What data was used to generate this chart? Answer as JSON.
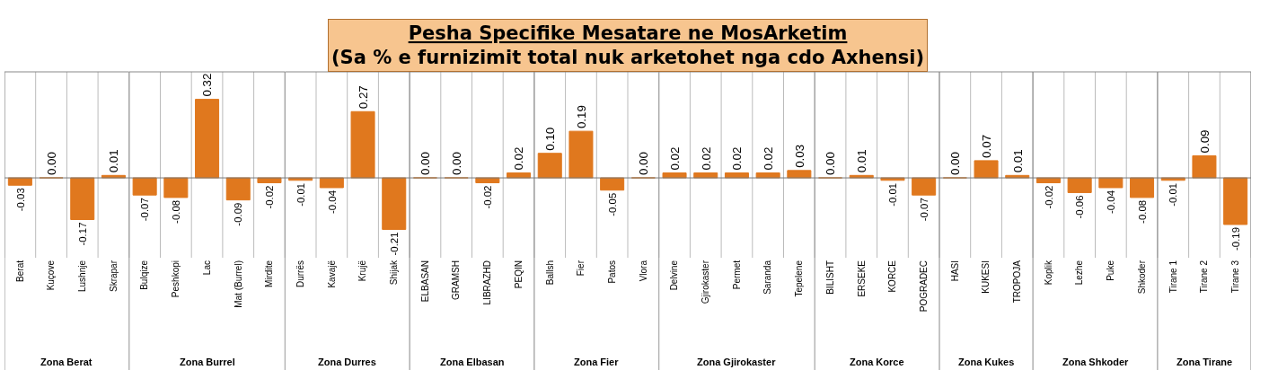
{
  "chart_data": [
    {
      "type": "bar",
      "xlabel": "Zona Berat",
      "categories": [
        "Berat",
        "Kuçove",
        "Lushnje",
        "Skrapar"
      ],
      "values": [
        -0.03,
        0.0,
        -0.17,
        0.01
      ],
      "value_labels": [
        "-0.03",
        "0.00",
        "-0.17",
        "0.01"
      ],
      "color": "#e0781e"
    },
    {
      "type": "bar",
      "xlabel": "Zona Burrel",
      "categories": [
        "Bulqize",
        "Peshkopi",
        "Lac",
        "Mat (Burrel)",
        "Mirdite"
      ],
      "values": [
        -0.07,
        -0.08,
        0.32,
        -0.09,
        -0.02
      ],
      "value_labels": [
        "-0.07",
        "-0.08",
        "0.32",
        "-0.09",
        "-0.02"
      ],
      "color": "#e0781e"
    },
    {
      "type": "bar",
      "xlabel": "Zona Durres",
      "categories": [
        "Durrës",
        "Kavajë",
        "Krujë",
        "Shijak"
      ],
      "values": [
        -0.01,
        -0.04,
        0.27,
        -0.21
      ],
      "value_labels": [
        "-0.01",
        "-0.04",
        "0.27",
        "-0.21"
      ],
      "color": "#e0781e"
    },
    {
      "type": "bar",
      "xlabel": "Zona Elbasan",
      "categories": [
        "ELBASAN",
        "GRAMSH",
        "LIBRAZHD",
        "PEQIN"
      ],
      "values": [
        0.0,
        0.0,
        -0.02,
        0.02
      ],
      "value_labels": [
        "0.00",
        "0.00",
        "-0.02",
        "0.02"
      ],
      "color": "#e0781e"
    },
    {
      "type": "bar",
      "title": "Pesha Specifike Mesatare ne MosArketim",
      "subtitle": "(Sa % e furnizimit total nuk arketohet nga cdo Axhensi)",
      "xlabel": "Zona Fier",
      "categories": [
        "Ballsh",
        "Fier",
        "Patos",
        "Vlora"
      ],
      "values": [
        0.1,
        0.19,
        -0.05,
        0.0
      ],
      "value_labels": [
        "0.10",
        "0.19",
        "-0.05",
        "0.00"
      ],
      "color": "#e0781e"
    },
    {
      "type": "bar",
      "xlabel": "Zona Gjirokaster",
      "categories": [
        "Delvine",
        "Gjirokaster",
        "Permet",
        "Saranda",
        "Tepelene"
      ],
      "values": [
        0.02,
        0.02,
        0.02,
        0.02,
        0.03
      ],
      "value_labels": [
        "0.02",
        "0.02",
        "0.02",
        "0.02",
        "0.03"
      ],
      "color": "#e0781e"
    },
    {
      "type": "bar",
      "xlabel": "Zona Korce",
      "categories": [
        "BILISHT",
        "ERSEKE",
        "KORCE",
        "POGRADEC"
      ],
      "values": [
        0.0,
        0.01,
        -0.01,
        -0.07
      ],
      "value_labels": [
        "0.00",
        "0.01",
        "-0.01",
        "-0.07"
      ],
      "color": "#e0781e"
    },
    {
      "type": "bar",
      "xlabel": "Zona Kukes",
      "categories": [
        "HASI",
        "KUKESI",
        "TROPOJA"
      ],
      "values": [
        0.0,
        0.07,
        0.01
      ],
      "value_labels": [
        "0.00",
        "0.07",
        "0.01"
      ],
      "color": "#e0781e"
    },
    {
      "type": "bar",
      "xlabel": "Zona Shkoder",
      "categories": [
        "Koplik",
        "Lezhe",
        "Puke",
        "Shkoder"
      ],
      "values": [
        -0.02,
        -0.06,
        -0.04,
        -0.08
      ],
      "value_labels": [
        "-0.02",
        "-0.06",
        "-0.04",
        "-0.08"
      ],
      "color": "#e0781e"
    },
    {
      "type": "bar",
      "xlabel": "Zona Tirane",
      "categories": [
        "Tirane 1",
        "Tirane 2",
        "Tirane 3"
      ],
      "values": [
        -0.01,
        0.09,
        -0.19
      ],
      "value_labels": [
        "-0.01",
        "0.09",
        "-0.19"
      ],
      "color": "#e0781e"
    }
  ]
}
